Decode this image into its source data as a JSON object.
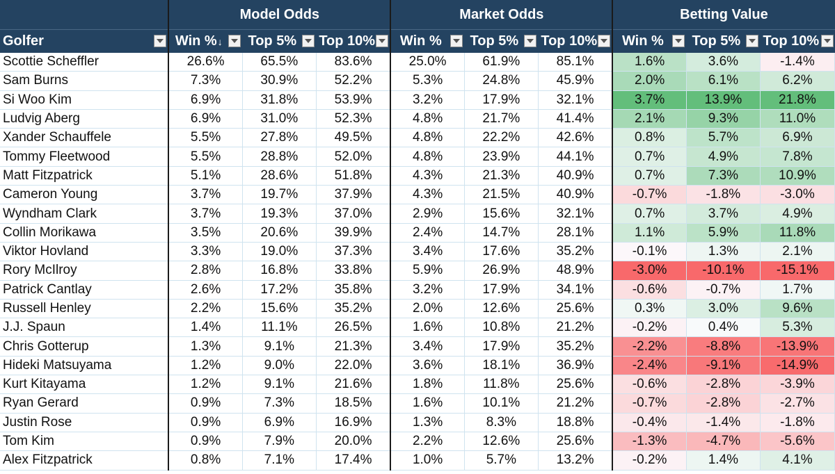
{
  "groups": {
    "model": "Model Odds",
    "market": "Market Odds",
    "value": "Betting Value"
  },
  "columns": {
    "golfer": "Golfer",
    "model_win": "Win %",
    "model_top5": "Top 5%",
    "model_top10": "Top 10%",
    "market_win": "Win %",
    "market_top5": "Top 5%",
    "market_top10": "Top 10%",
    "value_win": "Win %",
    "value_top5": "Top 5%",
    "value_top10": "Top 10%"
  },
  "sort_icon": "sort-descending-icon",
  "dropdown_icon": "filter-dropdown-icon",
  "colors": {
    "header_bg": "#244361",
    "positive_max": "#63be7b",
    "negative_max": "#f8696b",
    "neutral": "#fcfcff"
  },
  "rows": [
    {
      "golfer": "Scottie Scheffler",
      "model": [
        "26.6%",
        "65.5%",
        "83.6%"
      ],
      "market": [
        "25.0%",
        "61.9%",
        "85.1%"
      ],
      "value": [
        "1.6%",
        "3.6%",
        "-1.4%"
      ]
    },
    {
      "golfer": "Sam Burns",
      "model": [
        "7.3%",
        "30.9%",
        "52.2%"
      ],
      "market": [
        "5.3%",
        "24.8%",
        "45.9%"
      ],
      "value": [
        "2.0%",
        "6.1%",
        "6.2%"
      ]
    },
    {
      "golfer": "Si Woo Kim",
      "model": [
        "6.9%",
        "31.8%",
        "53.9%"
      ],
      "market": [
        "3.2%",
        "17.9%",
        "32.1%"
      ],
      "value": [
        "3.7%",
        "13.9%",
        "21.8%"
      ]
    },
    {
      "golfer": "Ludvig Aberg",
      "model": [
        "6.9%",
        "31.0%",
        "52.3%"
      ],
      "market": [
        "4.8%",
        "21.7%",
        "41.4%"
      ],
      "value": [
        "2.1%",
        "9.3%",
        "11.0%"
      ]
    },
    {
      "golfer": "Xander Schauffele",
      "model": [
        "5.5%",
        "27.8%",
        "49.5%"
      ],
      "market": [
        "4.8%",
        "22.2%",
        "42.6%"
      ],
      "value": [
        "0.8%",
        "5.7%",
        "6.9%"
      ]
    },
    {
      "golfer": "Tommy Fleetwood",
      "model": [
        "5.5%",
        "28.8%",
        "52.0%"
      ],
      "market": [
        "4.8%",
        "23.9%",
        "44.1%"
      ],
      "value": [
        "0.7%",
        "4.9%",
        "7.8%"
      ]
    },
    {
      "golfer": "Matt Fitzpatrick",
      "model": [
        "5.1%",
        "28.6%",
        "51.8%"
      ],
      "market": [
        "4.3%",
        "21.3%",
        "40.9%"
      ],
      "value": [
        "0.7%",
        "7.3%",
        "10.9%"
      ]
    },
    {
      "golfer": "Cameron Young",
      "model": [
        "3.7%",
        "19.7%",
        "37.9%"
      ],
      "market": [
        "4.3%",
        "21.5%",
        "40.9%"
      ],
      "value": [
        "-0.7%",
        "-1.8%",
        "-3.0%"
      ]
    },
    {
      "golfer": "Wyndham Clark",
      "model": [
        "3.7%",
        "19.3%",
        "37.0%"
      ],
      "market": [
        "2.9%",
        "15.6%",
        "32.1%"
      ],
      "value": [
        "0.7%",
        "3.7%",
        "4.9%"
      ]
    },
    {
      "golfer": "Collin Morikawa",
      "model": [
        "3.5%",
        "20.6%",
        "39.9%"
      ],
      "market": [
        "2.4%",
        "14.7%",
        "28.1%"
      ],
      "value": [
        "1.1%",
        "5.9%",
        "11.8%"
      ]
    },
    {
      "golfer": "Viktor Hovland",
      "model": [
        "3.3%",
        "19.0%",
        "37.3%"
      ],
      "market": [
        "3.4%",
        "17.6%",
        "35.2%"
      ],
      "value": [
        "-0.1%",
        "1.3%",
        "2.1%"
      ]
    },
    {
      "golfer": "Rory McIlroy",
      "model": [
        "2.8%",
        "16.8%",
        "33.8%"
      ],
      "market": [
        "5.9%",
        "26.9%",
        "48.9%"
      ],
      "value": [
        "-3.0%",
        "-10.1%",
        "-15.1%"
      ]
    },
    {
      "golfer": "Patrick Cantlay",
      "model": [
        "2.6%",
        "17.2%",
        "35.8%"
      ],
      "market": [
        "3.2%",
        "17.9%",
        "34.1%"
      ],
      "value": [
        "-0.6%",
        "-0.7%",
        "1.7%"
      ]
    },
    {
      "golfer": "Russell Henley",
      "model": [
        "2.2%",
        "15.6%",
        "35.2%"
      ],
      "market": [
        "2.0%",
        "12.6%",
        "25.6%"
      ],
      "value": [
        "0.3%",
        "3.0%",
        "9.6%"
      ]
    },
    {
      "golfer": "J.J. Spaun",
      "model": [
        "1.4%",
        "11.1%",
        "26.5%"
      ],
      "market": [
        "1.6%",
        "10.8%",
        "21.2%"
      ],
      "value": [
        "-0.2%",
        "0.4%",
        "5.3%"
      ]
    },
    {
      "golfer": "Chris Gotterup",
      "model": [
        "1.3%",
        "9.1%",
        "21.3%"
      ],
      "market": [
        "3.4%",
        "17.9%",
        "35.2%"
      ],
      "value": [
        "-2.2%",
        "-8.8%",
        "-13.9%"
      ]
    },
    {
      "golfer": "Hideki Matsuyama",
      "model": [
        "1.2%",
        "9.0%",
        "22.0%"
      ],
      "market": [
        "3.6%",
        "18.1%",
        "36.9%"
      ],
      "value": [
        "-2.4%",
        "-9.1%",
        "-14.9%"
      ]
    },
    {
      "golfer": "Kurt Kitayama",
      "model": [
        "1.2%",
        "9.1%",
        "21.6%"
      ],
      "market": [
        "1.8%",
        "11.8%",
        "25.6%"
      ],
      "value": [
        "-0.6%",
        "-2.8%",
        "-3.9%"
      ]
    },
    {
      "golfer": "Ryan Gerard",
      "model": [
        "0.9%",
        "7.3%",
        "18.5%"
      ],
      "market": [
        "1.6%",
        "10.1%",
        "21.2%"
      ],
      "value": [
        "-0.7%",
        "-2.8%",
        "-2.7%"
      ]
    },
    {
      "golfer": "Justin Rose",
      "model": [
        "0.9%",
        "6.9%",
        "16.9%"
      ],
      "market": [
        "1.3%",
        "8.3%",
        "18.8%"
      ],
      "value": [
        "-0.4%",
        "-1.4%",
        "-1.8%"
      ]
    },
    {
      "golfer": "Tom Kim",
      "model": [
        "0.9%",
        "7.9%",
        "20.0%"
      ],
      "market": [
        "2.2%",
        "12.6%",
        "25.6%"
      ],
      "value": [
        "-1.3%",
        "-4.7%",
        "-5.6%"
      ]
    },
    {
      "golfer": "Alex Fitzpatrick",
      "model": [
        "0.8%",
        "7.1%",
        "17.4%"
      ],
      "market": [
        "1.0%",
        "5.7%",
        "13.2%"
      ],
      "value": [
        "-0.2%",
        "1.4%",
        "4.1%"
      ]
    }
  ]
}
